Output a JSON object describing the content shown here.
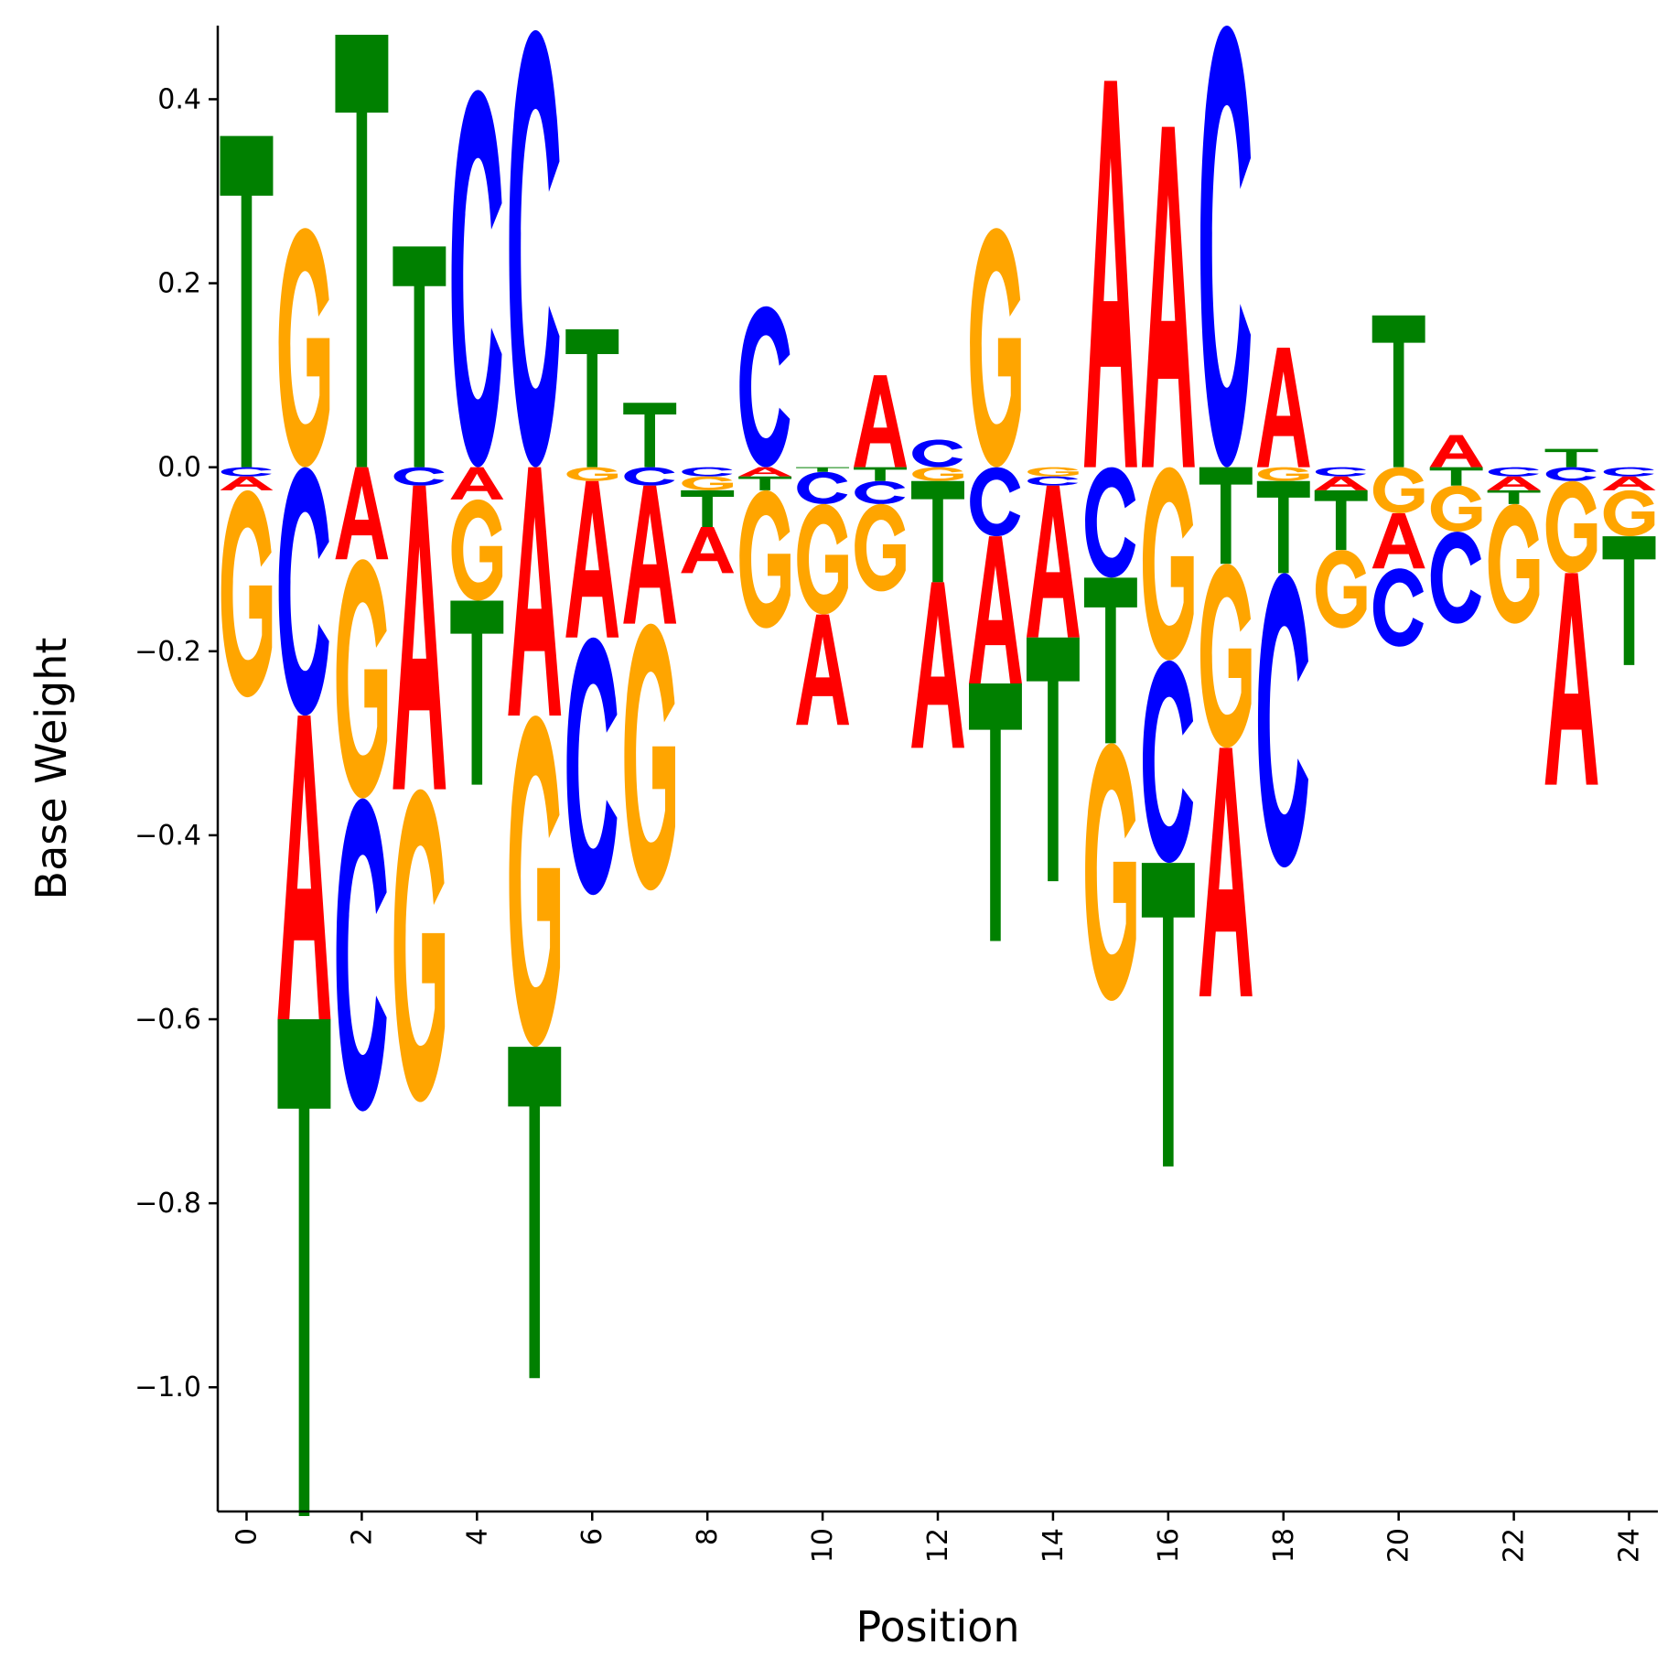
{
  "chart_data": {
    "type": "sequence-logo",
    "xlabel": "Position",
    "ylabel": "Base Weight",
    "xlim": [
      -0.5,
      24.5
    ],
    "ylim": [
      -1.135,
      0.48
    ],
    "x_ticks": [
      0,
      2,
      4,
      6,
      8,
      10,
      12,
      14,
      16,
      18,
      20,
      22,
      24
    ],
    "y_ticks": [
      0.4,
      0.2,
      0.0,
      -0.2,
      -0.4,
      -0.6,
      -0.8,
      -1.0
    ],
    "y_tick_labels": [
      "0.4",
      "0.2",
      "0.0",
      "−0.2",
      "−0.4",
      "−0.6",
      "−0.8",
      "−1.0"
    ],
    "x_tick_labels": [
      "0",
      "2",
      "4",
      "6",
      "8",
      "10",
      "12",
      "14",
      "16",
      "18",
      "20",
      "22",
      "24"
    ],
    "grid": false,
    "colors": {
      "A": "#ff0000",
      "C": "#0000ff",
      "G": "#ffa500",
      "T": "#008000"
    },
    "positions": [
      {
        "pos": 0,
        "pos_stack": [
          [
            "T",
            0.36
          ]
        ],
        "neg_stack": [
          [
            "C",
            0.01
          ],
          [
            "A",
            0.015
          ],
          [
            "G",
            0.225
          ]
        ]
      },
      {
        "pos": 1,
        "pos_stack": [
          [
            "G",
            0.26
          ]
        ],
        "neg_stack": [
          [
            "C",
            0.27
          ],
          [
            "A",
            0.33
          ],
          [
            "T",
            0.54
          ]
        ]
      },
      {
        "pos": 2,
        "pos_stack": [
          [
            "T",
            0.47
          ]
        ],
        "neg_stack": [
          [
            "A",
            0.1
          ],
          [
            "G",
            0.26
          ],
          [
            "C",
            0.34
          ]
        ]
      },
      {
        "pos": 3,
        "pos_stack": [
          [
            "T",
            0.24
          ]
        ],
        "neg_stack": [
          [
            "C",
            0.02
          ],
          [
            "A",
            0.33
          ],
          [
            "G",
            0.34
          ]
        ]
      },
      {
        "pos": 4,
        "pos_stack": [
          [
            "C",
            0.41
          ]
        ],
        "neg_stack": [
          [
            "A",
            0.035
          ],
          [
            "G",
            0.11
          ],
          [
            "T",
            0.2
          ]
        ]
      },
      {
        "pos": 5,
        "pos_stack": [
          [
            "C",
            0.475
          ]
        ],
        "neg_stack": [
          [
            "A",
            0.27
          ],
          [
            "G",
            0.36
          ],
          [
            "T",
            0.36
          ]
        ]
      },
      {
        "pos": 6,
        "pos_stack": [
          [
            "T",
            0.15
          ]
        ],
        "neg_stack": [
          [
            "G",
            0.015
          ],
          [
            "A",
            0.17
          ],
          [
            "C",
            0.28
          ]
        ]
      },
      {
        "pos": 7,
        "pos_stack": [
          [
            "T",
            0.07
          ]
        ],
        "neg_stack": [
          [
            "C",
            0.02
          ],
          [
            "A",
            0.15
          ],
          [
            "G",
            0.29
          ]
        ]
      },
      {
        "pos": 8,
        "pos_stack": [],
        "neg_stack": [
          [
            "C",
            0.01
          ],
          [
            "G",
            0.015
          ],
          [
            "T",
            0.04
          ],
          [
            "A",
            0.05
          ]
        ]
      },
      {
        "pos": 9,
        "pos_stack": [
          [
            "C",
            0.175
          ]
        ],
        "neg_stack": [
          [
            "A",
            0.01
          ],
          [
            "T",
            0.015
          ],
          [
            "G",
            0.15
          ]
        ]
      },
      {
        "pos": 10,
        "pos_stack": [],
        "neg_stack": [
          [
            "T",
            0.005
          ],
          [
            "C",
            0.035
          ],
          [
            "G",
            0.12
          ],
          [
            "A",
            0.12
          ]
        ]
      },
      {
        "pos": 11,
        "pos_stack": [
          [
            "A",
            0.1
          ]
        ],
        "neg_stack": [
          [
            "T",
            0.015
          ],
          [
            "C",
            0.025
          ],
          [
            "G",
            0.095
          ]
        ]
      },
      {
        "pos": 12,
        "pos_stack": [
          [
            "C",
            0.03
          ]
        ],
        "neg_stack": [
          [
            "G",
            0.015
          ],
          [
            "T",
            0.11
          ],
          [
            "A",
            0.18
          ]
        ]
      },
      {
        "pos": 13,
        "pos_stack": [
          [
            "G",
            0.26
          ]
        ],
        "neg_stack": [
          [
            "C",
            0.075
          ],
          [
            "A",
            0.16
          ],
          [
            "T",
            0.28
          ]
        ]
      },
      {
        "pos": 14,
        "pos_stack": [],
        "neg_stack": [
          [
            "G",
            0.01
          ],
          [
            "C",
            0.01
          ],
          [
            "A",
            0.165
          ],
          [
            "T",
            0.265
          ]
        ]
      },
      {
        "pos": 15,
        "pos_stack": [
          [
            "A",
            0.42
          ]
        ],
        "neg_stack": [
          [
            "C",
            0.12
          ],
          [
            "T",
            0.18
          ],
          [
            "G",
            0.28
          ]
        ]
      },
      {
        "pos": 16,
        "pos_stack": [
          [
            "A",
            0.37
          ]
        ],
        "neg_stack": [
          [
            "G",
            0.21
          ],
          [
            "C",
            0.22
          ],
          [
            "T",
            0.33
          ]
        ]
      },
      {
        "pos": 17,
        "pos_stack": [
          [
            "C",
            0.48
          ]
        ],
        "neg_stack": [
          [
            "T",
            0.105
          ],
          [
            "G",
            0.2
          ],
          [
            "A",
            0.27
          ]
        ]
      },
      {
        "pos": 18,
        "pos_stack": [
          [
            "A",
            0.13
          ]
        ],
        "neg_stack": [
          [
            "G",
            0.015
          ],
          [
            "T",
            0.1
          ],
          [
            "C",
            0.32
          ]
        ]
      },
      {
        "pos": 19,
        "pos_stack": [],
        "neg_stack": [
          [
            "C",
            0.01
          ],
          [
            "A",
            0.015
          ],
          [
            "T",
            0.065
          ],
          [
            "G",
            0.085
          ]
        ]
      },
      {
        "pos": 20,
        "pos_stack": [
          [
            "T",
            0.165
          ]
        ],
        "neg_stack": [
          [
            "G",
            0.05
          ],
          [
            "A",
            0.06
          ],
          [
            "C",
            0.085
          ]
        ]
      },
      {
        "pos": 21,
        "pos_stack": [
          [
            "A",
            0.035
          ]
        ],
        "neg_stack": [
          [
            "T",
            0.02
          ],
          [
            "G",
            0.05
          ],
          [
            "C",
            0.1
          ]
        ]
      },
      {
        "pos": 22,
        "pos_stack": [],
        "neg_stack": [
          [
            "C",
            0.01
          ],
          [
            "A",
            0.015
          ],
          [
            "T",
            0.015
          ],
          [
            "G",
            0.13
          ]
        ]
      },
      {
        "pos": 23,
        "pos_stack": [
          [
            "T",
            0.02
          ]
        ],
        "neg_stack": [
          [
            "C",
            0.015
          ],
          [
            "G",
            0.1
          ],
          [
            "A",
            0.23
          ]
        ]
      },
      {
        "pos": 24,
        "pos_stack": [],
        "neg_stack": [
          [
            "C",
            0.01
          ],
          [
            "A",
            0.015
          ],
          [
            "G",
            0.05
          ],
          [
            "T",
            0.14
          ]
        ]
      }
    ]
  }
}
